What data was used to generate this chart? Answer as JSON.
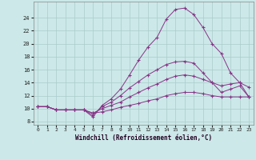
{
  "xlabel": "Windchill (Refroidissement éolien,°C)",
  "background_color": "#cce8e8",
  "grid_color": "#aacccc",
  "line_color": "#883388",
  "x_ticks": [
    0,
    1,
    2,
    3,
    4,
    5,
    6,
    7,
    8,
    9,
    10,
    11,
    12,
    13,
    14,
    15,
    16,
    17,
    18,
    19,
    20,
    21,
    22,
    23
  ],
  "y_ticks": [
    8,
    10,
    12,
    14,
    16,
    18,
    20,
    22,
    24
  ],
  "xlim": [
    -0.5,
    23.5
  ],
  "ylim": [
    7.5,
    26.5
  ],
  "series": [
    {
      "x": [
        0,
        1,
        2,
        3,
        4,
        5,
        6,
        7,
        8,
        9,
        10,
        11,
        12,
        13,
        14,
        15,
        16,
        17,
        18,
        19,
        20,
        21,
        22,
        23
      ],
      "y": [
        10.3,
        10.3,
        9.8,
        9.8,
        9.8,
        9.8,
        9.3,
        9.5,
        9.8,
        10.2,
        10.5,
        10.8,
        11.2,
        11.5,
        12.0,
        12.3,
        12.5,
        12.5,
        12.3,
        12.0,
        11.8,
        11.8,
        11.8,
        11.8
      ]
    },
    {
      "x": [
        0,
        1,
        2,
        3,
        4,
        5,
        6,
        7,
        8,
        9,
        10,
        11,
        12,
        13,
        14,
        15,
        16,
        17,
        18,
        19,
        20,
        21,
        22,
        23
      ],
      "y": [
        10.3,
        10.3,
        9.8,
        9.8,
        9.8,
        9.8,
        9.3,
        10.0,
        10.5,
        11.0,
        11.8,
        12.5,
        13.2,
        13.8,
        14.5,
        15.0,
        15.2,
        15.0,
        14.5,
        14.0,
        13.5,
        13.8,
        14.0,
        13.3
      ]
    },
    {
      "x": [
        0,
        1,
        2,
        3,
        4,
        5,
        6,
        7,
        8,
        9,
        10,
        11,
        12,
        13,
        14,
        15,
        16,
        17,
        18,
        19,
        20,
        21,
        22,
        23
      ],
      "y": [
        10.3,
        10.3,
        9.8,
        9.8,
        9.8,
        9.8,
        9.0,
        10.3,
        11.0,
        12.0,
        13.2,
        14.2,
        15.2,
        16.0,
        16.8,
        17.2,
        17.3,
        17.0,
        15.5,
        14.0,
        12.5,
        13.0,
        13.5,
        11.8
      ]
    },
    {
      "x": [
        0,
        1,
        2,
        3,
        4,
        5,
        6,
        7,
        8,
        9,
        10,
        11,
        12,
        13,
        14,
        15,
        16,
        17,
        18,
        19,
        20,
        21,
        22,
        23
      ],
      "y": [
        10.3,
        10.3,
        9.8,
        9.8,
        9.8,
        9.8,
        8.7,
        10.5,
        11.5,
        13.0,
        15.2,
        17.5,
        19.5,
        21.0,
        23.8,
        25.3,
        25.5,
        24.5,
        22.5,
        20.0,
        18.5,
        15.5,
        14.0,
        11.8
      ]
    }
  ]
}
